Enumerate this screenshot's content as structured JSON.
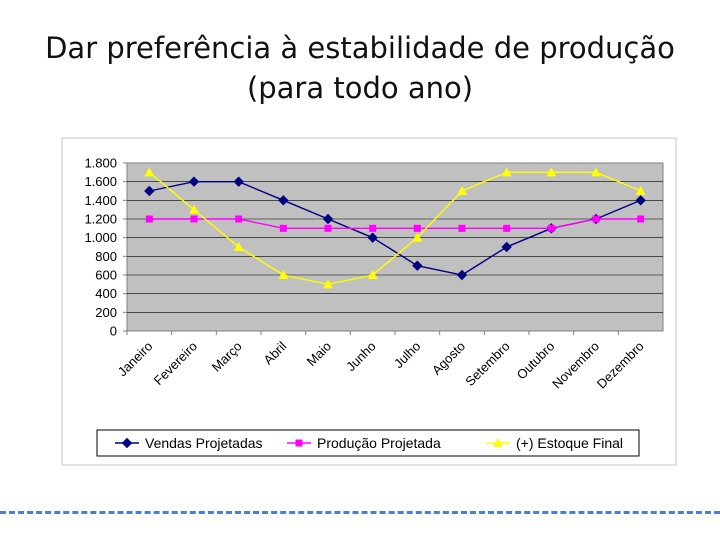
{
  "slide": {
    "title_line1": "Dar preferência à  estabilidade de produção",
    "title_line2": "(para todo ano)"
  },
  "chart_data": {
    "type": "line",
    "title": "",
    "xlabel": "",
    "ylabel": "",
    "categories": [
      "Janeiro",
      "Fevereiro",
      "Março",
      "Abril",
      "Maio",
      "Junho",
      "Julho",
      "Agosto",
      "Setembro",
      "Outubro",
      "Novembro",
      "Dezembro"
    ],
    "ylim": [
      0,
      1800
    ],
    "yticks": [
      0,
      200,
      400,
      600,
      800,
      1000,
      1200,
      1400,
      1600,
      1800
    ],
    "ytick_labels": [
      "0",
      "200",
      "400",
      "600",
      "800",
      "1.000",
      "1.200",
      "1.400",
      "1.600",
      "1.800"
    ],
    "grid": true,
    "legend_position": "bottom",
    "series": [
      {
        "name": "Vendas Projetadas",
        "color": "#000080",
        "marker": "diamond",
        "values": [
          1500,
          1600,
          1600,
          1400,
          1200,
          1000,
          700,
          600,
          900,
          1100,
          1200,
          1400
        ]
      },
      {
        "name": "Produção Projetada",
        "color": "#ff00ff",
        "marker": "square",
        "values": [
          1200,
          1200,
          1200,
          1100,
          1100,
          1100,
          1100,
          1100,
          1100,
          1100,
          1200,
          1200
        ]
      },
      {
        "name": "(+) Estoque Final",
        "color": "#ffff00",
        "marker": "triangle",
        "values": [
          1700,
          1300,
          900,
          600,
          500,
          600,
          1000,
          1500,
          1700,
          1700,
          1700,
          1500
        ]
      }
    ]
  }
}
